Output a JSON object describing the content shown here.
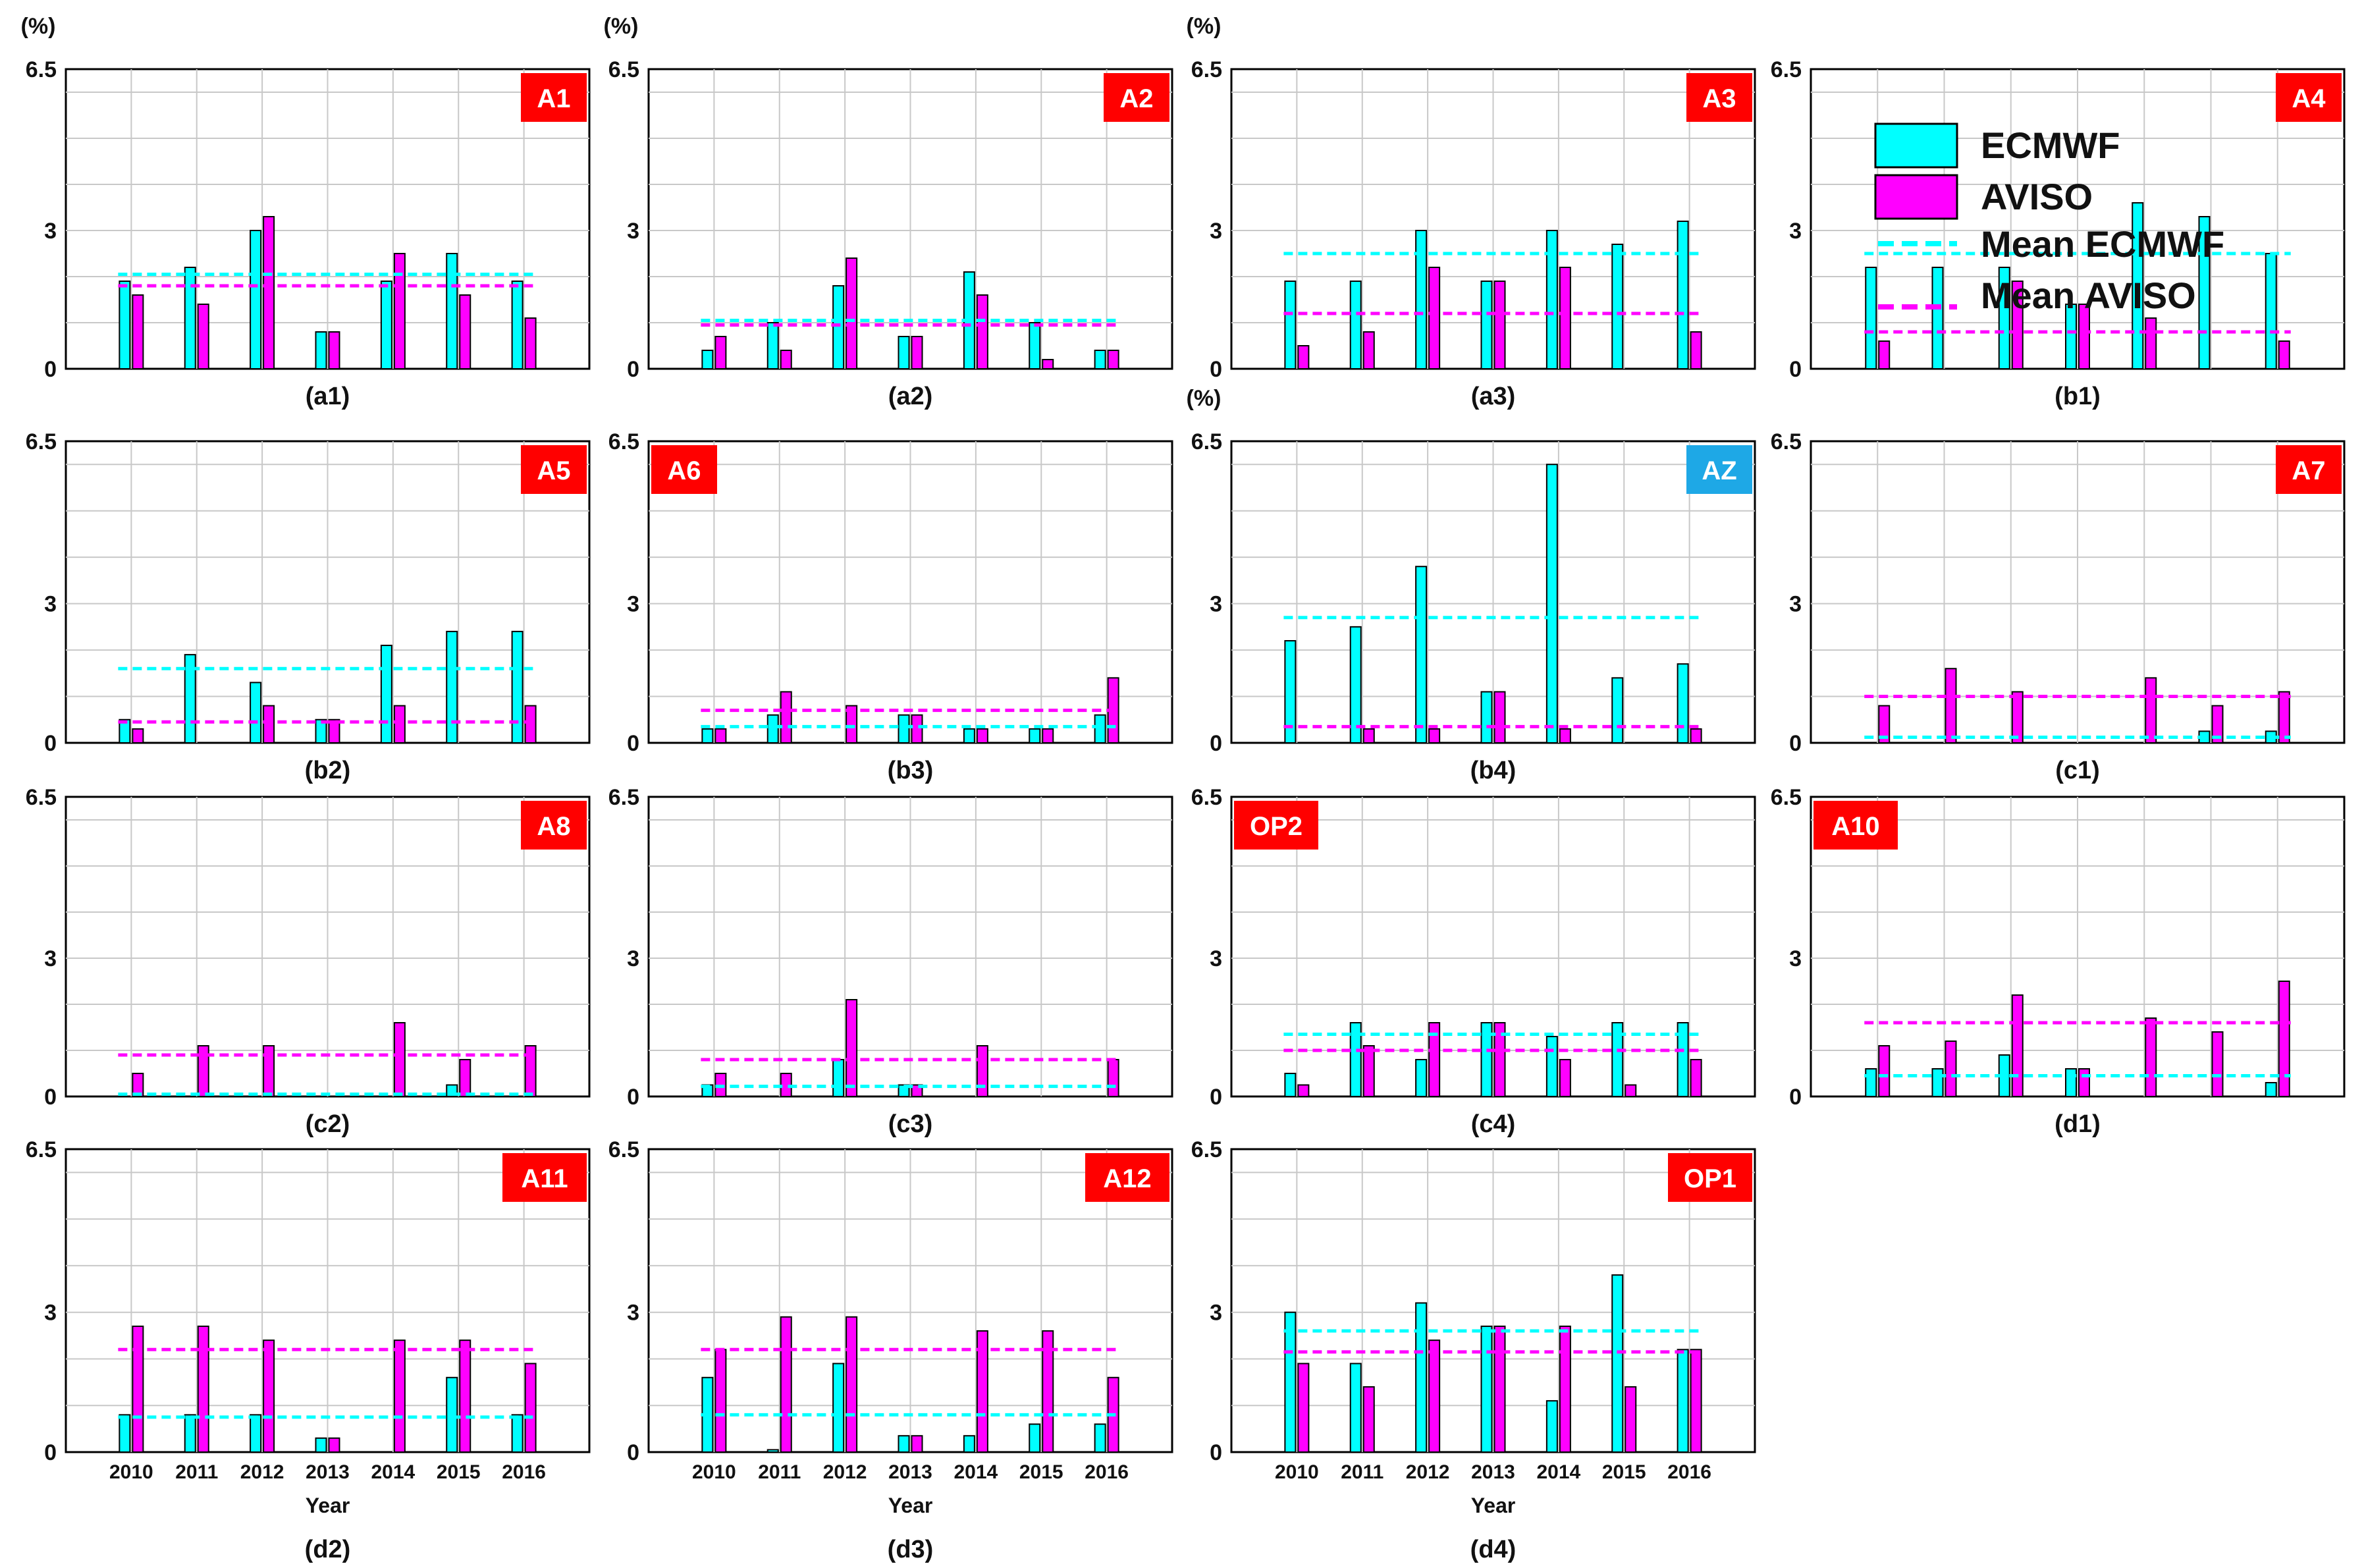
{
  "figure": {
    "years": [
      "2010",
      "2011",
      "2012",
      "2013",
      "2014",
      "2015",
      "2016"
    ],
    "xlabel": "Year",
    "yunit": "(%)",
    "yticks": [
      "0",
      "3",
      "6.5"
    ],
    "colors": {
      "ecmwf": "#00FFFF",
      "aviso": "#FF00FF",
      "tag_red": "#FF0000",
      "tag_blue": "#1EA8E6"
    }
  },
  "legend": {
    "ecmwf": "ECMWF",
    "aviso": "AVISO",
    "mean_ecmwf": "Mean ECMWF",
    "mean_aviso": "Mean AVISO"
  },
  "chart_data": [
    {
      "type": "bar",
      "panel": "(a1)",
      "tag": "A1",
      "tag_color": "red",
      "ylim": [
        0,
        6.5
      ],
      "categories": [
        "2010",
        "2011",
        "2012",
        "2013",
        "2014",
        "2015",
        "2016"
      ],
      "series": [
        {
          "name": "ECMWF",
          "values": [
            1.9,
            2.2,
            3.0,
            0.8,
            1.9,
            2.5,
            1.9
          ]
        },
        {
          "name": "AVISO",
          "values": [
            1.6,
            1.4,
            3.3,
            0.8,
            2.5,
            1.6,
            1.1
          ]
        }
      ],
      "mean": {
        "ECMWF": 2.05,
        "AVISO": 1.8
      }
    },
    {
      "type": "bar",
      "panel": "(a2)",
      "tag": "A2",
      "tag_color": "red",
      "ylim": [
        0,
        6.5
      ],
      "categories": [
        "2010",
        "2011",
        "2012",
        "2013",
        "2014",
        "2015",
        "2016"
      ],
      "series": [
        {
          "name": "ECMWF",
          "values": [
            0.4,
            1.0,
            1.8,
            0.7,
            2.1,
            1.0,
            0.4
          ]
        },
        {
          "name": "AVISO",
          "values": [
            0.7,
            0.4,
            2.4,
            0.7,
            1.6,
            0.2,
            0.4
          ]
        }
      ],
      "mean": {
        "ECMWF": 1.05,
        "AVISO": 0.95
      }
    },
    {
      "type": "bar",
      "panel": "(a3)",
      "tag": "A3",
      "tag_color": "red",
      "ylim": [
        0,
        6.5
      ],
      "categories": [
        "2010",
        "2011",
        "2012",
        "2013",
        "2014",
        "2015",
        "2016"
      ],
      "series": [
        {
          "name": "ECMWF",
          "values": [
            1.9,
            1.9,
            3.0,
            1.9,
            3.0,
            2.7,
            3.2
          ]
        },
        {
          "name": "AVISO",
          "values": [
            0.5,
            0.8,
            2.2,
            1.9,
            2.2,
            0.0,
            0.8
          ]
        }
      ],
      "mean": {
        "ECMWF": 2.5,
        "AVISO": 1.2
      }
    },
    {
      "type": "bar",
      "panel": "(b1)",
      "tag": "A4",
      "tag_color": "red",
      "ylim": [
        0,
        6.5
      ],
      "categories": [
        "2010",
        "2011",
        "2012",
        "2013",
        "2014",
        "2015",
        "2016"
      ],
      "series": [
        {
          "name": "ECMWF",
          "values": [
            2.2,
            2.2,
            2.2,
            1.4,
            3.6,
            3.3,
            2.5
          ]
        },
        {
          "name": "AVISO",
          "values": [
            0.6,
            0.0,
            1.9,
            1.4,
            1.1,
            0.0,
            0.6
          ]
        }
      ],
      "mean": {
        "ECMWF": 2.5,
        "AVISO": 0.8
      }
    },
    {
      "type": "bar",
      "panel": "(b2)",
      "tag": "A5",
      "tag_color": "red",
      "ylim": [
        0,
        6.5
      ],
      "categories": [
        "2010",
        "2011",
        "2012",
        "2013",
        "2014",
        "2015",
        "2016"
      ],
      "series": [
        {
          "name": "ECMWF",
          "values": [
            0.5,
            1.9,
            1.3,
            0.5,
            2.1,
            2.4,
            2.4
          ]
        },
        {
          "name": "AVISO",
          "values": [
            0.3,
            0.0,
            0.8,
            0.5,
            0.8,
            0.0,
            0.8
          ]
        }
      ],
      "mean": {
        "ECMWF": 1.6,
        "AVISO": 0.45
      }
    },
    {
      "type": "bar",
      "panel": "(b3)",
      "tag": "A6",
      "tag_color": "red",
      "ylim": [
        0,
        6.5
      ],
      "categories": [
        "2010",
        "2011",
        "2012",
        "2013",
        "2014",
        "2015",
        "2016"
      ],
      "series": [
        {
          "name": "ECMWF",
          "values": [
            0.3,
            0.6,
            0.0,
            0.6,
            0.3,
            0.3,
            0.6
          ]
        },
        {
          "name": "AVISO",
          "values": [
            0.3,
            1.1,
            0.8,
            0.6,
            0.3,
            0.3,
            1.4
          ]
        }
      ],
      "mean": {
        "ECMWF": 0.35,
        "AVISO": 0.7
      }
    },
    {
      "type": "bar",
      "panel": "(b4)",
      "tag": "AZ",
      "tag_color": "blue",
      "ylim": [
        0,
        6.5
      ],
      "categories": [
        "2010",
        "2011",
        "2012",
        "2013",
        "2014",
        "2015",
        "2016"
      ],
      "series": [
        {
          "name": "ECMWF",
          "values": [
            2.2,
            2.5,
            3.8,
            1.1,
            6.0,
            1.4,
            1.7
          ]
        },
        {
          "name": "AVISO",
          "values": [
            0.0,
            0.3,
            0.3,
            1.1,
            0.3,
            0.0,
            0.3
          ]
        }
      ],
      "mean": {
        "ECMWF": 2.7,
        "AVISO": 0.35
      }
    },
    {
      "type": "bar",
      "panel": "(c1)",
      "tag": "A7",
      "tag_color": "red",
      "ylim": [
        0,
        6.5
      ],
      "categories": [
        "2010",
        "2011",
        "2012",
        "2013",
        "2014",
        "2015",
        "2016"
      ],
      "series": [
        {
          "name": "ECMWF",
          "values": [
            0.0,
            0.0,
            0.0,
            0.0,
            0.0,
            0.25,
            0.25
          ]
        },
        {
          "name": "AVISO",
          "values": [
            0.8,
            1.6,
            1.1,
            0.0,
            1.4,
            0.8,
            1.1
          ]
        }
      ],
      "mean": {
        "ECMWF": 0.12,
        "AVISO": 1.0
      }
    },
    {
      "type": "bar",
      "panel": "(c2)",
      "tag": "A8",
      "tag_color": "red",
      "ylim": [
        0,
        6.5
      ],
      "categories": [
        "2010",
        "2011",
        "2012",
        "2013",
        "2014",
        "2015",
        "2016"
      ],
      "series": [
        {
          "name": "ECMWF",
          "values": [
            0.0,
            0.0,
            0.0,
            0.0,
            0.0,
            0.25,
            0.0
          ]
        },
        {
          "name": "AVISO",
          "values": [
            0.5,
            1.1,
            1.1,
            0.0,
            1.6,
            0.8,
            1.1
          ]
        }
      ],
      "mean": {
        "ECMWF": 0.05,
        "AVISO": 0.9
      }
    },
    {
      "type": "bar",
      "panel": "(c3)",
      "tag": "",
      "tag_color": "red",
      "ylim": [
        0,
        6.5
      ],
      "categories": [
        "2010",
        "2011",
        "2012",
        "2013",
        "2014",
        "2015",
        "2016"
      ],
      "series": [
        {
          "name": "ECMWF",
          "values": [
            0.25,
            0.0,
            0.8,
            0.25,
            0.0,
            0.0,
            0.0
          ]
        },
        {
          "name": "AVISO",
          "values": [
            0.5,
            0.5,
            2.1,
            0.25,
            1.1,
            0.0,
            0.8
          ]
        }
      ],
      "mean": {
        "ECMWF": 0.22,
        "AVISO": 0.8
      }
    },
    {
      "type": "bar",
      "panel": "(c4)",
      "tag": "OP2",
      "tag_color": "red",
      "ylim": [
        0,
        6.5
      ],
      "categories": [
        "2010",
        "2011",
        "2012",
        "2013",
        "2014",
        "2015",
        "2016"
      ],
      "series": [
        {
          "name": "ECMWF",
          "values": [
            0.5,
            1.6,
            0.8,
            1.6,
            1.3,
            1.6,
            1.6
          ]
        },
        {
          "name": "AVISO",
          "values": [
            0.25,
            1.1,
            1.6,
            1.6,
            0.8,
            0.25,
            0.8
          ]
        }
      ],
      "mean": {
        "ECMWF": 1.35,
        "AVISO": 1.0
      }
    },
    {
      "type": "bar",
      "panel": "(d1)",
      "tag": "A10",
      "tag_color": "red",
      "ylim": [
        0,
        6.5
      ],
      "categories": [
        "2010",
        "2011",
        "2012",
        "2013",
        "2014",
        "2015",
        "2016"
      ],
      "series": [
        {
          "name": "ECMWF",
          "values": [
            0.6,
            0.6,
            0.9,
            0.6,
            0.0,
            0.0,
            0.3
          ]
        },
        {
          "name": "AVISO",
          "values": [
            1.1,
            1.2,
            2.2,
            0.6,
            1.7,
            1.4,
            2.5
          ]
        }
      ],
      "mean": {
        "ECMWF": 0.45,
        "AVISO": 1.6
      }
    },
    {
      "type": "bar",
      "panel": "(d2)",
      "tag": "A11",
      "tag_color": "red",
      "ylim": [
        0,
        6.5
      ],
      "categories": [
        "2010",
        "2011",
        "2012",
        "2013",
        "2014",
        "2015",
        "2016"
      ],
      "series": [
        {
          "name": "ECMWF",
          "values": [
            0.8,
            0.8,
            0.8,
            0.3,
            0.0,
            1.6,
            0.8
          ]
        },
        {
          "name": "AVISO",
          "values": [
            2.7,
            2.7,
            2.4,
            0.3,
            2.4,
            2.4,
            1.9
          ]
        }
      ],
      "mean": {
        "ECMWF": 0.75,
        "AVISO": 2.2
      }
    },
    {
      "type": "bar",
      "panel": "(d3)",
      "tag": "A12",
      "tag_color": "red",
      "ylim": [
        0,
        6.5
      ],
      "categories": [
        "2010",
        "2011",
        "2012",
        "2013",
        "2014",
        "2015",
        "2016"
      ],
      "series": [
        {
          "name": "ECMWF",
          "values": [
            1.6,
            0.05,
            1.9,
            0.35,
            0.35,
            0.6,
            0.6
          ]
        },
        {
          "name": "AVISO",
          "values": [
            2.2,
            2.9,
            2.9,
            0.35,
            2.6,
            2.6,
            1.6
          ]
        }
      ],
      "mean": {
        "ECMWF": 0.8,
        "AVISO": 2.2
      }
    },
    {
      "type": "bar",
      "panel": "(d4)",
      "tag": "OP1",
      "tag_color": "red",
      "ylim": [
        0,
        6.5
      ],
      "categories": [
        "2010",
        "2011",
        "2012",
        "2013",
        "2014",
        "2015",
        "2016"
      ],
      "series": [
        {
          "name": "ECMWF",
          "values": [
            3.0,
            1.9,
            3.2,
            2.7,
            1.1,
            3.8,
            2.2
          ]
        },
        {
          "name": "AVISO",
          "values": [
            1.9,
            1.4,
            2.4,
            2.7,
            2.7,
            1.4,
            2.2
          ]
        }
      ],
      "mean": {
        "ECMWF": 2.6,
        "AVISO": 2.15
      }
    }
  ]
}
